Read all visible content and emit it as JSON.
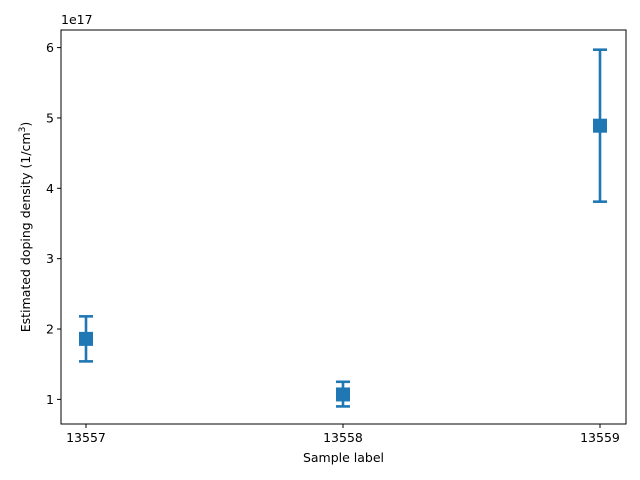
{
  "chart_data": {
    "type": "scatter",
    "categories": [
      "13557",
      "13558",
      "13559"
    ],
    "xlabel": "Sample label",
    "ylabel_main": "Estimated doping density (1/cm",
    "ylabel_sup": "3",
    "ylabel_close": ")",
    "y_offset_label": "1e17",
    "y_multiplier": 1e+17,
    "ylim": [
      0.65,
      6.25
    ],
    "yticks": [
      1,
      2,
      3,
      4,
      5,
      6
    ],
    "ytick_labels": [
      "1",
      "2",
      "3",
      "4",
      "5",
      "6"
    ],
    "grid": false,
    "series": [
      {
        "color": "#1f77b4",
        "marker": "square",
        "values": [
          1.86,
          1.07,
          4.89
        ],
        "err_low": [
          1.54,
          0.9,
          3.81
        ],
        "err_high": [
          2.18,
          1.25,
          5.97
        ]
      }
    ]
  }
}
